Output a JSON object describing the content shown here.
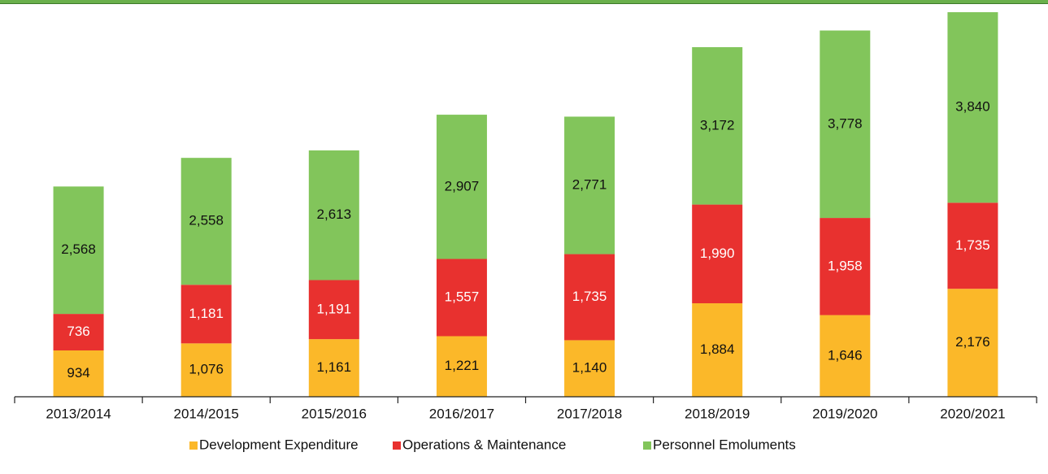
{
  "chart_data": {
    "type": "stacked_bar",
    "categories": [
      "2013/2014",
      "2014/2015",
      "2015/2016",
      "2016/2017",
      "2017/2018",
      "2018/2019",
      "2019/2020",
      "2020/2021"
    ],
    "series": [
      {
        "name": "Development Expenditure",
        "color": "#fbb829",
        "label_color": "#111111",
        "values": [
          934,
          1076,
          1161,
          1221,
          1140,
          1884,
          1646,
          2176
        ],
        "value_labels": [
          "934",
          "1,076",
          "1,161",
          "1,221",
          "1,140",
          "1,884",
          "1,646",
          "2,176"
        ]
      },
      {
        "name": "Operations & Maintenance",
        "color": "#e8312f",
        "label_color": "#ffffff",
        "values": [
          736,
          1181,
          1191,
          1557,
          1735,
          1990,
          1958,
          1735
        ],
        "value_labels": [
          "736",
          "1,181",
          "1,191",
          "1,557",
          "1,735",
          "1,990",
          "1,958",
          "1,735"
        ]
      },
      {
        "name": "Personnel Emoluments",
        "color": "#82c55b",
        "label_color": "#111111",
        "values": [
          2568,
          2558,
          2613,
          2907,
          2771,
          3172,
          3778,
          3840
        ],
        "value_labels": [
          "2,568",
          "2,558",
          "2,613",
          "2,907",
          "2,771",
          "3,172",
          "3,778",
          "3,840"
        ]
      }
    ],
    "legend": "bottom"
  }
}
